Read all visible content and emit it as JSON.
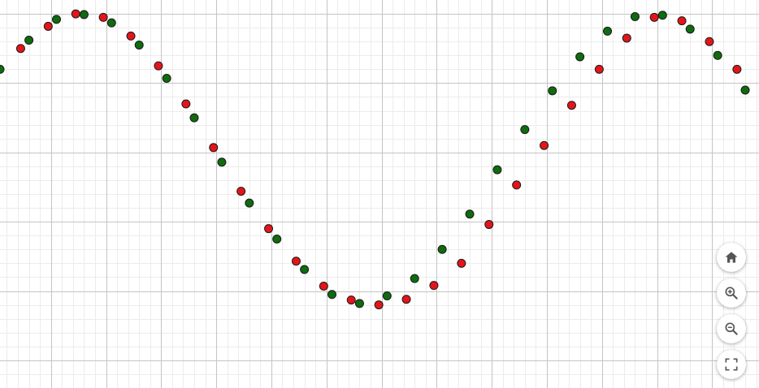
{
  "chart_data": {
    "type": "scatter",
    "xlim": [
      -3.85,
      23.7
    ],
    "ylim": [
      -1.4,
      4.2
    ],
    "grid": true,
    "x_major_step": 2,
    "y_major_step": 1,
    "minor_divisions": 5,
    "series": [
      {
        "color": "#e3151a",
        "x": [
          -3.1,
          -2.1,
          -1.1,
          -0.1,
          0.9,
          1.9,
          2.9,
          3.9,
          4.9,
          5.9,
          6.9,
          7.9,
          8.9,
          9.9,
          10.9,
          11.9,
          12.9,
          13.9,
          14.9,
          15.9,
          16.9,
          17.9,
          18.9,
          19.9,
          20.9,
          21.9,
          22.9
        ],
        "y": [
          3.5,
          3.82,
          4.0,
          3.95,
          3.68,
          3.25,
          2.7,
          2.07,
          1.44,
          0.9,
          0.43,
          0.07,
          -0.13,
          -0.2,
          -0.12,
          0.08,
          0.4,
          0.96,
          1.53,
          2.1,
          2.68,
          3.2,
          3.65,
          3.95,
          3.9,
          3.6,
          3.2
        ]
      },
      {
        "color": "#0e6b0e",
        "x": [
          -3.85,
          -2.8,
          -1.8,
          -0.8,
          0.2,
          1.2,
          2.2,
          3.2,
          4.2,
          5.2,
          6.2,
          7.2,
          8.2,
          9.2,
          10.2,
          11.2,
          12.2,
          13.2,
          14.2,
          15.2,
          16.2,
          17.2,
          18.2,
          19.2,
          20.2,
          21.2,
          22.2,
          23.2
        ],
        "y": [
          3.2,
          3.62,
          3.92,
          3.99,
          3.87,
          3.55,
          3.07,
          2.5,
          1.86,
          1.27,
          0.75,
          0.31,
          -0.05,
          -0.18,
          -0.07,
          0.18,
          0.6,
          1.11,
          1.75,
          2.33,
          2.89,
          3.38,
          3.75,
          3.96,
          3.98,
          3.78,
          3.4,
          2.9
        ]
      }
    ]
  },
  "controls": {
    "home": "home-icon",
    "zoom_in": "zoom-in-icon",
    "zoom_out": "zoom-out-icon",
    "fullscreen": "fullscreen-icon"
  }
}
